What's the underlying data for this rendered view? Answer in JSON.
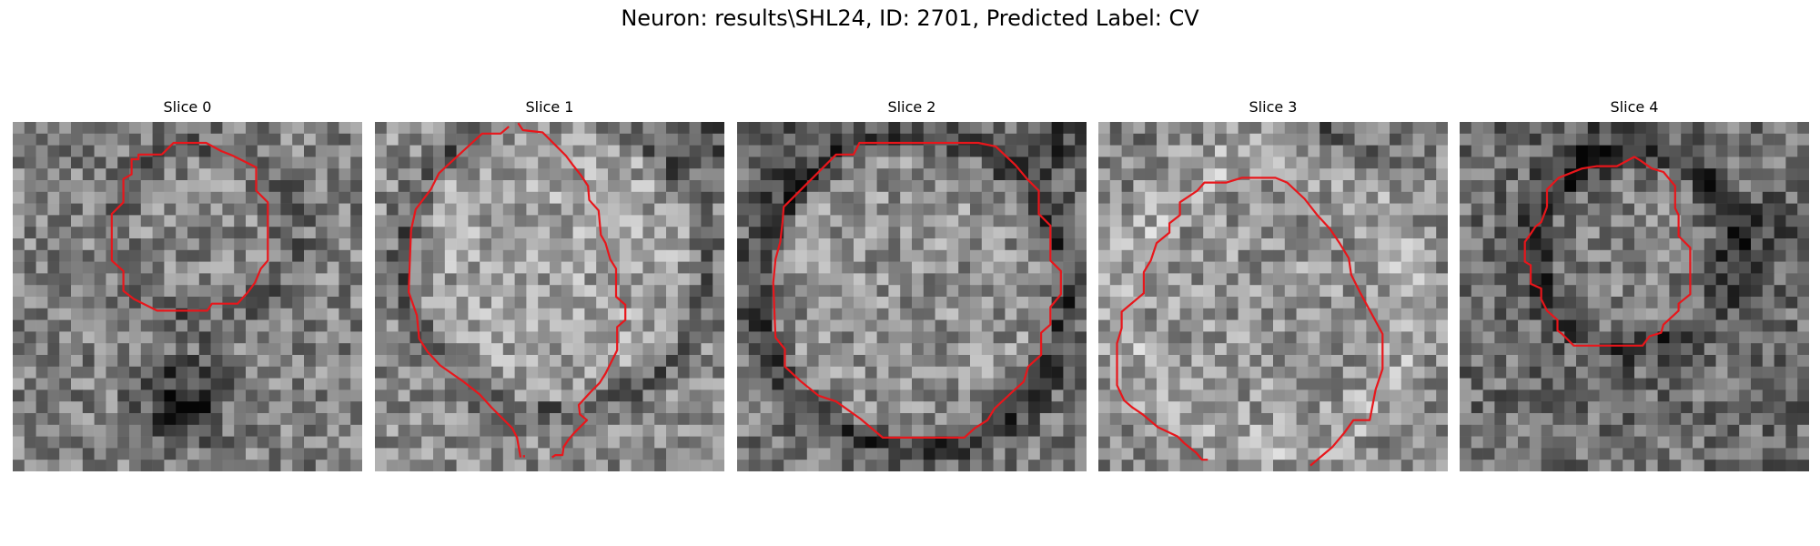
{
  "figure": {
    "title": "Neuron: results\\SHL24, ID: 2701, Predicted Label: CV"
  },
  "panels": [
    {
      "title": "Slice 0"
    },
    {
      "title": "Slice 1"
    },
    {
      "title": "Slice 2"
    },
    {
      "title": "Slice 3"
    },
    {
      "title": "Slice 4"
    }
  ],
  "colors": {
    "contour": "#e8161b",
    "background": "#ffffff"
  }
}
